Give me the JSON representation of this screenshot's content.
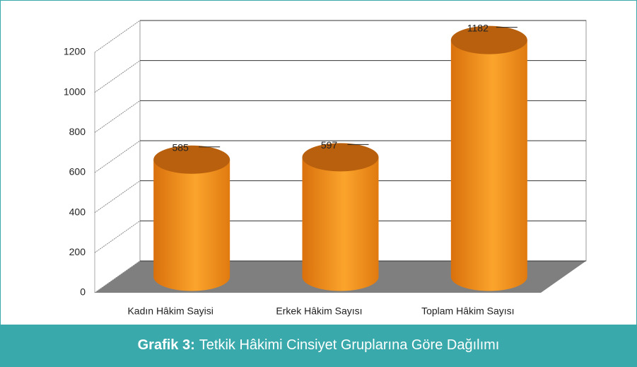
{
  "chart_data": {
    "type": "bar",
    "categories": [
      "Kadın Hâkim Sayisi",
      "Erkek Hâkim Sayısı",
      "Toplam Hâkim Sayısı"
    ],
    "values": [
      585,
      597,
      1182
    ],
    "color": "#f39418",
    "ylim": [
      0,
      1200
    ],
    "yticks": [
      0,
      200,
      400,
      600,
      800,
      1000,
      1200
    ],
    "grid": true
  },
  "caption": {
    "label": "Grafik 3:",
    "text": "Tetkik Hâkimi Cinsiyet Gruplarına Göre Dağılımı"
  }
}
